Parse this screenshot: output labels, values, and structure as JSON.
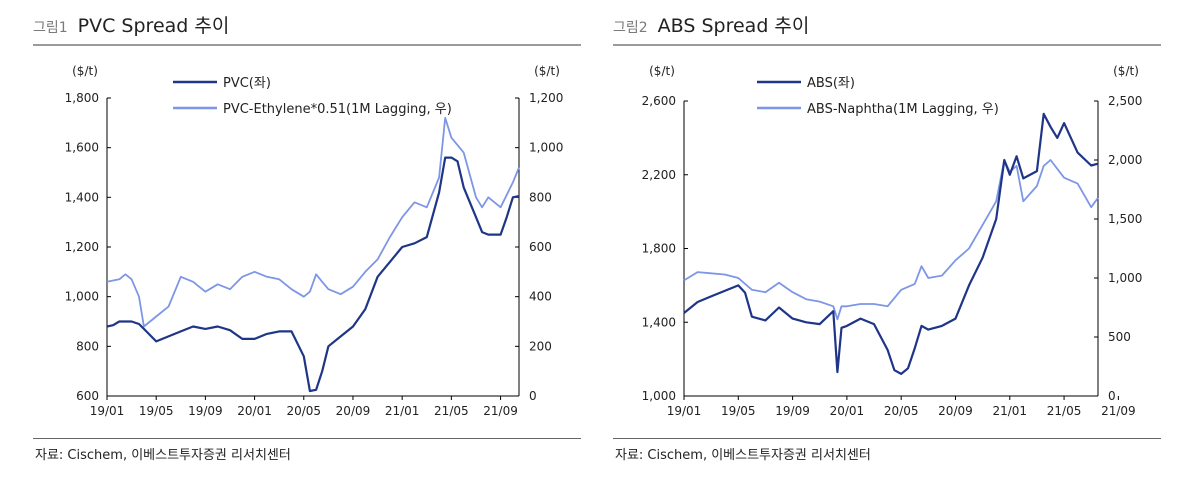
{
  "chart_data": [
    {
      "type": "line",
      "figure_label": "그림1",
      "title": "PVC Spread 추이",
      "ylabel_left": "($/t)",
      "ylabel_right": "($/t)",
      "ylim_left": [
        600,
        1800
      ],
      "ylim_right": [
        0,
        1200
      ],
      "yticks_left": [
        "1,800",
        "1,600",
        "1,400",
        "1,200",
        "1,000",
        "800",
        "600"
      ],
      "yticks_right": [
        "1,200",
        "1,000",
        "800",
        "600",
        "400",
        "200",
        "0"
      ],
      "xticks": [
        "19/01",
        "19/05",
        "19/09",
        "20/01",
        "20/05",
        "20/09",
        "21/01",
        "21/05",
        "21/09"
      ],
      "source": "자료: Cischem, 이베스트투자증권 리서치센터",
      "series": [
        {
          "name": "PVC(좌)",
          "axis": "left",
          "color": "#1f3587",
          "points": [
            [
              0,
              880
            ],
            [
              0.5,
              885
            ],
            [
              1,
              900
            ],
            [
              2,
              900
            ],
            [
              2.6,
              890
            ],
            [
              3,
              870
            ],
            [
              4,
              820
            ],
            [
              5,
              840
            ],
            [
              6,
              860
            ],
            [
              7,
              880
            ],
            [
              8,
              870
            ],
            [
              9,
              880
            ],
            [
              10,
              865
            ],
            [
              11,
              830
            ],
            [
              12,
              830
            ],
            [
              13,
              850
            ],
            [
              14,
              860
            ],
            [
              15,
              860
            ],
            [
              16,
              760
            ],
            [
              16.5,
              620
            ],
            [
              17,
              625
            ],
            [
              17.5,
              700
            ],
            [
              18,
              800
            ],
            [
              19,
              840
            ],
            [
              20,
              880
            ],
            [
              21,
              950
            ],
            [
              22,
              1080
            ],
            [
              23,
              1140
            ],
            [
              24,
              1200
            ],
            [
              25,
              1215
            ],
            [
              26,
              1240
            ],
            [
              27,
              1420
            ],
            [
              27.5,
              1560
            ],
            [
              28,
              1560
            ],
            [
              28.5,
              1545
            ],
            [
              29,
              1440
            ],
            [
              30,
              1320
            ],
            [
              30.5,
              1260
            ],
            [
              31,
              1250
            ],
            [
              32,
              1250
            ],
            [
              32.5,
              1320
            ],
            [
              33,
              1400
            ],
            [
              33.5,
              1405
            ]
          ]
        },
        {
          "name": "PVC-Ethylene*0.51(1M Lagging, 우)",
          "axis": "right",
          "color": "#7d96e6",
          "points": [
            [
              0,
              460
            ],
            [
              1,
              470
            ],
            [
              1.5,
              490
            ],
            [
              2,
              470
            ],
            [
              2.6,
              400
            ],
            [
              3,
              280
            ],
            [
              4,
              320
            ],
            [
              5,
              360
            ],
            [
              6,
              480
            ],
            [
              7,
              460
            ],
            [
              8,
              420
            ],
            [
              9,
              450
            ],
            [
              10,
              430
            ],
            [
              11,
              480
            ],
            [
              12,
              500
            ],
            [
              13,
              480
            ],
            [
              14,
              470
            ],
            [
              15,
              430
            ],
            [
              16,
              400
            ],
            [
              16.5,
              420
            ],
            [
              17,
              490
            ],
            [
              17.5,
              460
            ],
            [
              18,
              430
            ],
            [
              19,
              410
            ],
            [
              20,
              440
            ],
            [
              21,
              500
            ],
            [
              22,
              550
            ],
            [
              23,
              640
            ],
            [
              24,
              720
            ],
            [
              25,
              780
            ],
            [
              26,
              760
            ],
            [
              27,
              880
            ],
            [
              27.5,
              1120
            ],
            [
              28,
              1040
            ],
            [
              29,
              980
            ],
            [
              30,
              800
            ],
            [
              30.5,
              760
            ],
            [
              31,
              800
            ],
            [
              32,
              760
            ],
            [
              33,
              860
            ],
            [
              33.5,
              920
            ]
          ]
        }
      ]
    },
    {
      "type": "line",
      "figure_label": "그림2",
      "title": "ABS Spread 추이",
      "ylabel_left": "($/t)",
      "ylabel_right": "($/t)",
      "ylim_left": [
        1000,
        2600
      ],
      "ylim_right": [
        0,
        2500
      ],
      "yticks_left": [
        "2,600",
        "2,200",
        "1,800",
        "1,400",
        "1,000"
      ],
      "yticks_right": [
        "2,500",
        "2,000",
        "1,500",
        "1,000",
        "500",
        "0"
      ],
      "xticks": [
        "19/01",
        "19/05",
        "19/09",
        "20/01",
        "20/05",
        "20/09",
        "21/01",
        "21/05",
        "21/09"
      ],
      "source": "자료: Cischem, 이베스트투자증권 리서치센터",
      "series": [
        {
          "name": "ABS(좌)",
          "axis": "left",
          "color": "#1f3587",
          "points": [
            [
              0,
              1450
            ],
            [
              1,
              1510
            ],
            [
              2,
              1540
            ],
            [
              3,
              1570
            ],
            [
              4,
              1600
            ],
            [
              4.5,
              1560
            ],
            [
              5,
              1430
            ],
            [
              6,
              1410
            ],
            [
              7,
              1480
            ],
            [
              8,
              1420
            ],
            [
              9,
              1400
            ],
            [
              10,
              1390
            ],
            [
              11,
              1460
            ],
            [
              11.3,
              1130
            ],
            [
              11.6,
              1370
            ],
            [
              12,
              1380
            ],
            [
              13,
              1420
            ],
            [
              14,
              1390
            ],
            [
              15,
              1250
            ],
            [
              15.5,
              1140
            ],
            [
              16,
              1120
            ],
            [
              16.5,
              1150
            ],
            [
              17,
              1260
            ],
            [
              17.5,
              1380
            ],
            [
              18,
              1360
            ],
            [
              19,
              1380
            ],
            [
              20,
              1420
            ],
            [
              21,
              1600
            ],
            [
              22,
              1750
            ],
            [
              23,
              1960
            ],
            [
              23.6,
              2280
            ],
            [
              24,
              2200
            ],
            [
              24.5,
              2300
            ],
            [
              25,
              2180
            ],
            [
              26,
              2220
            ],
            [
              26.5,
              2530
            ],
            [
              27,
              2460
            ],
            [
              27.5,
              2400
            ],
            [
              28,
              2480
            ],
            [
              29,
              2320
            ],
            [
              30,
              2250
            ],
            [
              30.5,
              2260
            ]
          ]
        },
        {
          "name": "ABS-Naphtha(1M Lagging, 우)",
          "axis": "right",
          "color": "#7d96e6",
          "points": [
            [
              0,
              980
            ],
            [
              1,
              1050
            ],
            [
              2,
              1040
            ],
            [
              3,
              1030
            ],
            [
              4,
              1000
            ],
            [
              5,
              900
            ],
            [
              6,
              880
            ],
            [
              7,
              960
            ],
            [
              8,
              880
            ],
            [
              9,
              820
            ],
            [
              10,
              800
            ],
            [
              11,
              760
            ],
            [
              11.3,
              650
            ],
            [
              11.6,
              760
            ],
            [
              12,
              760
            ],
            [
              13,
              780
            ],
            [
              14,
              780
            ],
            [
              15,
              760
            ],
            [
              16,
              900
            ],
            [
              17,
              950
            ],
            [
              17.5,
              1100
            ],
            [
              18,
              1000
            ],
            [
              19,
              1020
            ],
            [
              20,
              1150
            ],
            [
              21,
              1250
            ],
            [
              22,
              1450
            ],
            [
              23,
              1650
            ],
            [
              23.6,
              2000
            ],
            [
              24,
              1900
            ],
            [
              24.5,
              1950
            ],
            [
              25,
              1650
            ],
            [
              26,
              1780
            ],
            [
              26.5,
              1950
            ],
            [
              27,
              2000
            ],
            [
              28,
              1850
            ],
            [
              29,
              1800
            ],
            [
              30,
              1600
            ],
            [
              30.5,
              1680
            ]
          ]
        }
      ]
    }
  ]
}
